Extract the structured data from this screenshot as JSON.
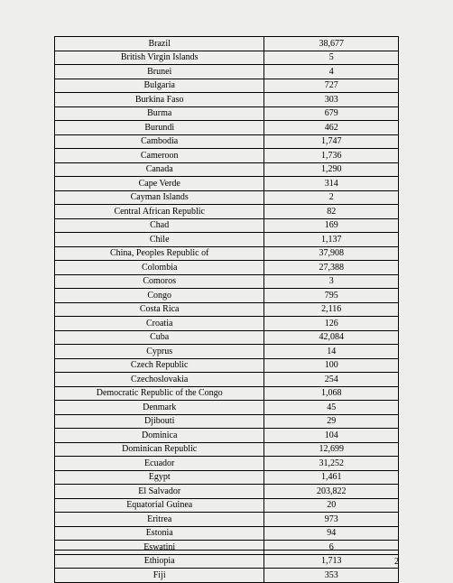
{
  "page_number": "2",
  "table": {
    "columns": [
      "country",
      "value"
    ],
    "column_widths": [
      "61%",
      "39%"
    ],
    "text_align": "center",
    "border_color": "#000000",
    "font_family": "Times New Roman",
    "font_size": 10,
    "background_color": "#eeeeec",
    "rows": [
      [
        "Brazil",
        "38,677"
      ],
      [
        "British Virgin Islands",
        "5"
      ],
      [
        "Brunei",
        "4"
      ],
      [
        "Bulgaria",
        "727"
      ],
      [
        "Burkina Faso",
        "303"
      ],
      [
        "Burma",
        "679"
      ],
      [
        "Burundi",
        "462"
      ],
      [
        "Cambodia",
        "1,747"
      ],
      [
        "Cameroon",
        "1,736"
      ],
      [
        "Canada",
        "1,290"
      ],
      [
        "Cape Verde",
        "314"
      ],
      [
        "Cayman Islands",
        "2"
      ],
      [
        "Central African Republic",
        "82"
      ],
      [
        "Chad",
        "169"
      ],
      [
        "Chile",
        "1,137"
      ],
      [
        "China, Peoples Republic of",
        "37,908"
      ],
      [
        "Colombia",
        "27,388"
      ],
      [
        "Comoros",
        "3"
      ],
      [
        "Congo",
        "795"
      ],
      [
        "Costa Rica",
        "2,116"
      ],
      [
        "Croatia",
        "126"
      ],
      [
        "Cuba",
        "42,084"
      ],
      [
        "Cyprus",
        "14"
      ],
      [
        "Czech Republic",
        "100"
      ],
      [
        "Czechoslovakia",
        "254"
      ],
      [
        "Democratic Republic of the Congo",
        "1,068"
      ],
      [
        "Denmark",
        "45"
      ],
      [
        "Djibouti",
        "29"
      ],
      [
        "Dominica",
        "104"
      ],
      [
        "Dominican Republic",
        "12,699"
      ],
      [
        "Ecuador",
        "31,252"
      ],
      [
        "Egypt",
        "1,461"
      ],
      [
        "El Salvador",
        "203,822"
      ],
      [
        "Equatorial Guinea",
        "20"
      ],
      [
        "Eritrea",
        "973"
      ],
      [
        "Estonia",
        "94"
      ],
      [
        "Eswatini",
        "6"
      ],
      [
        "Ethiopia",
        "1,713"
      ],
      [
        "Fiji",
        "353"
      ]
    ]
  }
}
